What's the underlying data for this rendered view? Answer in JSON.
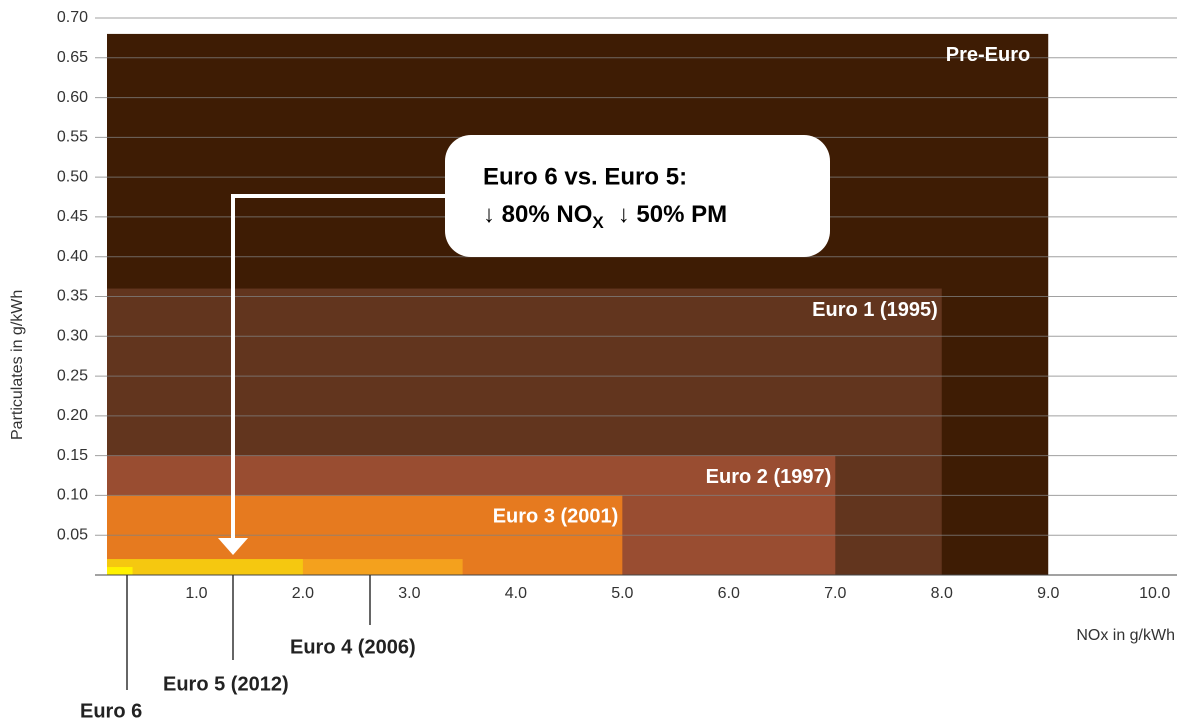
{
  "chart_data": {
    "type": "nested-box",
    "y_label": "Particulates in g/kWh",
    "x_label": "NOx in g/kWh",
    "categories": [
      "Pre-Euro",
      "Euro 1 (1995)",
      "Euro 2 (1997)",
      "Euro 3 (2001)",
      "Euro 4 (2006)",
      "Euro 5 (2012)",
      "Euro 6"
    ],
    "x": [
      9.0,
      8.0,
      7.0,
      5.0,
      3.5,
      2.0,
      0.4
    ],
    "values": [
      0.68,
      0.36,
      0.15,
      0.1,
      0.02,
      0.02,
      0.01
    ],
    "colors": [
      "#3e1c04",
      "#62351e",
      "#994d31",
      "#e67a1f",
      "#f4a11d",
      "#f5c810",
      "#fff200"
    ],
    "xlim": [
      0.16,
      10.2
    ],
    "ylim": [
      0,
      0.7
    ],
    "xticks": [
      {
        "value": 1,
        "label": "1.0"
      },
      {
        "value": 2,
        "label": "2.0"
      },
      {
        "value": 3,
        "label": "3.0"
      },
      {
        "value": 4,
        "label": "4.0"
      },
      {
        "value": 5,
        "label": "5.0"
      },
      {
        "value": 6,
        "label": "6.0"
      },
      {
        "value": 7,
        "label": "7.0"
      },
      {
        "value": 8,
        "label": "8.0"
      },
      {
        "value": 9,
        "label": "9.0"
      },
      {
        "value": 10,
        "label": "10.0"
      }
    ],
    "yticks": [
      0.05,
      {
        "value": 0.1,
        "label": "0.10"
      },
      0.15,
      {
        "value": 0.2,
        "label": "0.20"
      },
      0.25,
      {
        "value": 0.3,
        "label": "0.30"
      },
      0.35,
      {
        "value": 0.4,
        "label": "0.40"
      },
      0.45,
      {
        "value": 0.5,
        "label": "0.50"
      },
      0.55,
      {
        "value": 0.6,
        "label": "0.60"
      },
      0.65,
      {
        "value": 0.7,
        "label": "0.70"
      }
    ],
    "grid": true,
    "annotation": {
      "title": "Euro 6 vs. Euro 5:",
      "line": [
        "↓ 80% NO",
        "X",
        "↓ 50% PM"
      ]
    }
  }
}
